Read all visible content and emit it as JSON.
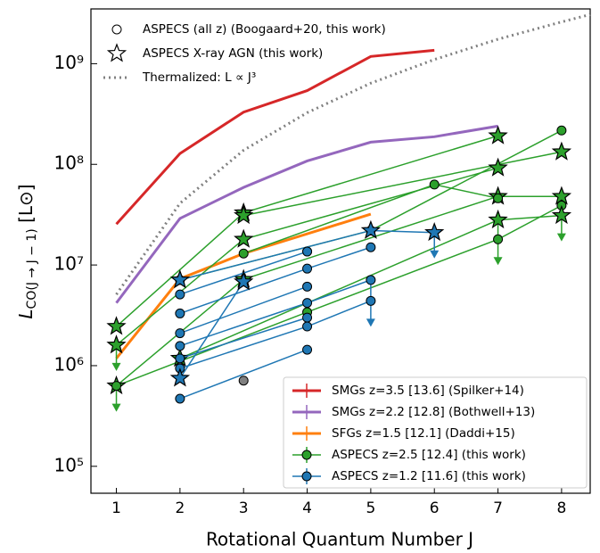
{
  "chart_data": {
    "type": "line",
    "ylabel": {
      "symbol": "L",
      "subscript": "CO(J → J − 1)",
      "unit": " [L⊙]"
    },
    "xlabel": "Rotational Quantum Number J",
    "xlim": [
      0.6,
      8.45
    ],
    "xticks": [
      1,
      2,
      3,
      4,
      5,
      6,
      7,
      8
    ],
    "ylim": [
      54000,
      3500000000
    ],
    "log_y": true,
    "yticks": [
      {
        "value": 100000,
        "label": "10⁵"
      },
      {
        "value": 1000000,
        "label": "10⁶"
      },
      {
        "value": 10000000,
        "label": "10⁷"
      },
      {
        "value": 100000000,
        "label": "10⁸"
      },
      {
        "value": 1000000000,
        "label": "10⁹"
      }
    ],
    "series": [
      {
        "name": "SMGs z=3.5 [13.6] (Spilker+14)",
        "color": "#d62728",
        "x": [
          1,
          2,
          3,
          4,
          5,
          6
        ],
        "values": [
          25500000,
          128000000,
          330000000,
          540000000,
          1180000000,
          1360000000
        ]
      },
      {
        "name": "SMGs z=2.2 [12.8] (Bothwell+13)",
        "color": "#9467bd",
        "x": [
          1,
          2,
          3,
          4,
          5,
          6,
          7
        ],
        "values": [
          4200000,
          29000000,
          59000000,
          108000000,
          166000000,
          188000000,
          240000000
        ]
      },
      {
        "name": "SFGs z=1.5 [12.1] (Daddi+15)",
        "color": "#ff7f0e",
        "x": [
          1,
          2,
          3,
          5
        ],
        "values": [
          1180000,
          7300000,
          13000000,
          32000000
        ]
      },
      {
        "name": "Thermalized: L ∝ J³",
        "color": "#808080",
        "style": "dotted",
        "x": [
          1,
          2,
          3,
          4,
          5,
          6,
          7,
          8,
          8.45
        ],
        "values": [
          5100000,
          41000000,
          138000000,
          326000000,
          640000000,
          1100000000,
          1750000000,
          2600000000,
          3080000000
        ]
      }
    ],
    "galaxy_groups": [
      {
        "name": "ASPECS z=2.5 [12.4] (this work)",
        "color": "#2ca02c",
        "tracks": [
          {
            "marker": "star",
            "x": [
              1,
              3,
              7
            ],
            "values": [
              2450000,
              33000000,
              192000000
            ]
          },
          {
            "marker": "star",
            "x": [
              1,
              3,
              7
            ],
            "values": [
              1600000,
              18000000,
              92000000
            ]
          },
          {
            "marker": "star",
            "x": [
              1,
              3,
              7,
              8
            ],
            "values": [
              630000,
              7200000,
              48000000,
              48000000
            ]
          },
          {
            "marker": "circle",
            "x": [
              1,
              4,
              7,
              8
            ],
            "values": [
              630000,
              3400000,
              18000000,
              39000000
            ]
          },
          {
            "marker": "circle",
            "x": [
              2,
              5,
              8
            ],
            "values": [
              7100000,
              22000000,
              217000000
            ]
          },
          {
            "marker": "circle",
            "x": [
              3,
              6,
              7
            ],
            "values": [
              13000000,
              63000000,
              46000000
            ]
          },
          {
            "marker": "star",
            "x": [
              3,
              8
            ],
            "values": [
              31000000,
              133000000
            ]
          },
          {
            "marker": "star",
            "x": [
              2,
              7,
              8
            ],
            "values": [
              1180000,
              28000000,
              31000000
            ]
          }
        ],
        "upper_limits": {
          "x": [
            1,
            1,
            7,
            7,
            8
          ],
          "values": [
            630000,
            1600000,
            18000000,
            28000000,
            31000000
          ]
        }
      },
      {
        "name": "ASPECS z=1.2 [11.6] (this work)",
        "color": "#1f77b4",
        "tracks": [
          {
            "marker": "star",
            "x": [
              2,
              5,
              6
            ],
            "values": [
              7100000,
              22000000,
              21000000
            ]
          },
          {
            "marker": "circle",
            "x": [
              2,
              4
            ],
            "values": [
              5100000,
              13600000
            ]
          },
          {
            "marker": "circle",
            "x": [
              2,
              4,
              5
            ],
            "values": [
              3300000,
              9200000,
              15000000
            ]
          },
          {
            "marker": "circle",
            "x": [
              2,
              4
            ],
            "values": [
              2100000,
              6100000
            ]
          },
          {
            "marker": "circle",
            "x": [
              2,
              4,
              5
            ],
            "values": [
              1570000,
              4200000,
              7100000
            ]
          },
          {
            "marker": "circle",
            "x": [
              2,
              4
            ],
            "values": [
              1180000,
              3000000
            ]
          },
          {
            "marker": "circle",
            "x": [
              2,
              4,
              5
            ],
            "values": [
              940000,
              2450000,
              4400000
            ]
          },
          {
            "marker": "circle",
            "x": [
              2,
              4
            ],
            "values": [
              470000,
              1440000
            ]
          },
          {
            "marker": "star",
            "x": [
              2,
              3
            ],
            "values": [
              750000,
              6800000
            ]
          }
        ],
        "upper_limits": {
          "x": [
            5,
            5,
            6
          ],
          "values": [
            7100000,
            4400000,
            21000000
          ]
        }
      }
    ],
    "other_points": {
      "color": "#808080",
      "x": [
        3,
        4
      ],
      "values": [
        710000,
        13600000
      ]
    },
    "marker_legend": [
      "ASPECS (all z) (Boogaard+20, this work)",
      "ASPECS X-ray AGN (this work)"
    ]
  }
}
